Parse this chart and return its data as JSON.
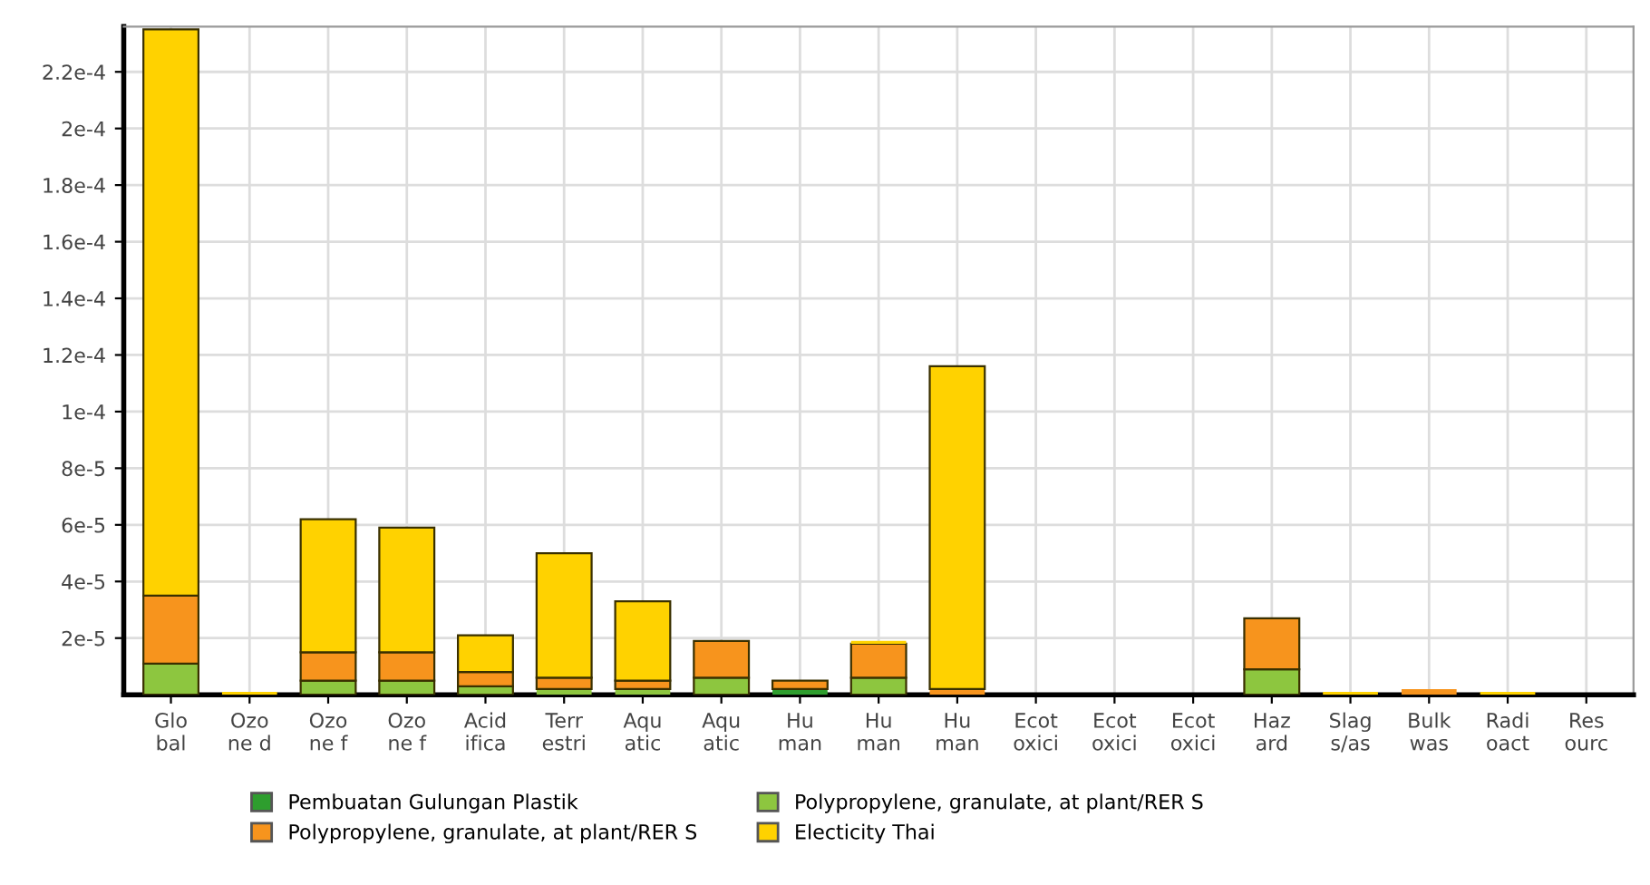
{
  "chart_data": {
    "type": "bar",
    "stacked": true,
    "categories": [
      "Glo\nbal",
      "Ozo\nne d",
      "Ozo\nne f",
      "Ozo\nne f",
      "Acid\nifica",
      "Terr\nestri",
      "Aqu\natic",
      "Aqu\natic",
      "Hu\nman",
      "Hu\nman",
      "Hu\nman",
      "Ecot\noxici",
      "Ecot\noxici",
      "Ecot\noxici",
      "Haz\nard",
      "Slag\ns/as",
      "Bulk\nwas",
      "Radi\noact",
      "Res\nourc"
    ],
    "series": [
      {
        "name": "Pembuatan Gulungan Plastik",
        "color": "#2e9e2e",
        "values": [
          0,
          0,
          0,
          0,
          0,
          0,
          0,
          0,
          2e-06,
          0,
          0,
          0,
          0,
          0,
          0,
          0,
          0,
          0,
          0
        ]
      },
      {
        "name": "Polypropylene, granulate, at plant/RER S",
        "color": "#8dc63f",
        "values": [
          1.1e-05,
          0,
          5e-06,
          5e-06,
          3e-06,
          2e-06,
          2e-06,
          6e-06,
          0,
          6e-06,
          0,
          0,
          0,
          0,
          9e-06,
          0,
          0,
          0,
          0
        ]
      },
      {
        "name": "Polypropylene, granulate, at plant/RER S",
        "color": "#f7941d",
        "values": [
          2.4e-05,
          0,
          1e-05,
          1e-05,
          5e-06,
          4e-06,
          3e-06,
          1.3e-05,
          3e-06,
          1.2e-05,
          2e-06,
          0,
          0,
          0,
          1.8e-05,
          0,
          2e-06,
          0,
          0
        ]
      },
      {
        "name": "Electicity Thai",
        "color": "#ffd200",
        "values": [
          0.0002,
          1e-06,
          4.7e-05,
          4.4e-05,
          1.3e-05,
          4.4e-05,
          2.8e-05,
          0,
          0,
          1e-06,
          0.000114,
          0,
          0,
          0,
          0,
          1e-06,
          0,
          1e-06,
          0
        ]
      }
    ],
    "ylim": [
      0,
      0.000236
    ],
    "yticks": [
      {
        "value": 2e-05,
        "label": "2e-5"
      },
      {
        "value": 4e-05,
        "label": "4e-5"
      },
      {
        "value": 6e-05,
        "label": "6e-5"
      },
      {
        "value": 8e-05,
        "label": "8e-5"
      },
      {
        "value": 0.0001,
        "label": "1e-4"
      },
      {
        "value": 0.00012,
        "label": "1.2e-4"
      },
      {
        "value": 0.00014,
        "label": "1.4e-4"
      },
      {
        "value": 0.00016,
        "label": "1.6e-4"
      },
      {
        "value": 0.00018,
        "label": "1.8e-4"
      },
      {
        "value": 0.0002,
        "label": "2e-4"
      },
      {
        "value": 0.00022,
        "label": "2.2e-4"
      }
    ],
    "grid": true,
    "legend": "bottom"
  }
}
